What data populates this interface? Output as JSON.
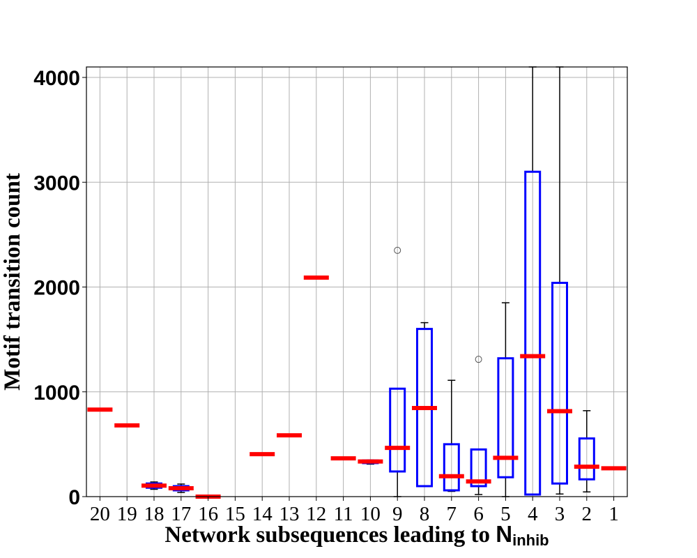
{
  "chart_data": {
    "type": "box",
    "title": "",
    "xlabel": "Network subsequences leading to ",
    "xlabel_symbol": "N",
    "xlabel_subscript": "inhib",
    "ylabel": "Motif transition count",
    "ylim": [
      0,
      4100
    ],
    "y_ticks": [
      "0",
      "1000",
      "2000",
      "3000",
      "4000"
    ],
    "y_tick_values": [
      0,
      1000,
      2000,
      3000,
      4000
    ],
    "grid": true,
    "box_color": "#0000ff",
    "median_color": "#ff0000",
    "whisker_color": "#000000",
    "categories": [
      "20",
      "19",
      "18",
      "17",
      "16",
      "15",
      "14",
      "13",
      "12",
      "11",
      "10",
      "9",
      "8",
      "7",
      "6",
      "5",
      "4",
      "3",
      "2",
      "1"
    ],
    "boxes": [
      {
        "label": "20",
        "min": 830,
        "q1": 830,
        "median": 830,
        "q3": 830,
        "max": 830,
        "outliers": []
      },
      {
        "label": "19",
        "min": 680,
        "q1": 680,
        "median": 680,
        "q3": 680,
        "max": 680,
        "outliers": []
      },
      {
        "label": "18",
        "min": 70,
        "q1": 85,
        "median": 105,
        "q3": 125,
        "max": 140,
        "outliers": []
      },
      {
        "label": "17",
        "min": 40,
        "q1": 60,
        "median": 80,
        "q3": 100,
        "max": 120,
        "outliers": []
      },
      {
        "label": "16",
        "min": 0,
        "q1": 0,
        "median": 0,
        "q3": 0,
        "max": 0,
        "outliers": []
      },
      {
        "label": "15",
        "empty": true
      },
      {
        "label": "14",
        "min": 405,
        "q1": 405,
        "median": 405,
        "q3": 405,
        "max": 405,
        "outliers": []
      },
      {
        "label": "13",
        "min": 585,
        "q1": 585,
        "median": 585,
        "q3": 585,
        "max": 585,
        "outliers": []
      },
      {
        "label": "12",
        "min": 2090,
        "q1": 2090,
        "median": 2090,
        "q3": 2090,
        "max": 2090,
        "outliers": []
      },
      {
        "label": "11",
        "min": 365,
        "q1": 365,
        "median": 365,
        "q3": 365,
        "max": 365,
        "outliers": []
      },
      {
        "label": "10",
        "min": 310,
        "q1": 320,
        "median": 335,
        "q3": 345,
        "max": 350,
        "outliers": []
      },
      {
        "label": "9",
        "min": 0,
        "q1": 240,
        "median": 465,
        "q3": 1030,
        "max": 1030,
        "outliers": [
          2350
        ]
      },
      {
        "label": "8",
        "min": 100,
        "q1": 100,
        "median": 845,
        "q3": 1600,
        "max": 1660,
        "outliers": []
      },
      {
        "label": "7",
        "min": 50,
        "q1": 60,
        "median": 195,
        "q3": 500,
        "max": 1110,
        "outliers": []
      },
      {
        "label": "6",
        "min": 20,
        "q1": 100,
        "median": 145,
        "q3": 450,
        "max": 450,
        "outliers": [
          1310
        ]
      },
      {
        "label": "5",
        "min": 0,
        "q1": 185,
        "median": 370,
        "q3": 1320,
        "max": 1850,
        "outliers": []
      },
      {
        "label": "4",
        "min": 20,
        "q1": 20,
        "median": 1340,
        "q3": 3100,
        "max": 4100,
        "outliers": []
      },
      {
        "label": "3",
        "min": 25,
        "q1": 125,
        "median": 815,
        "q3": 2040,
        "max": 4100,
        "outliers": []
      },
      {
        "label": "2",
        "min": 45,
        "q1": 165,
        "median": 285,
        "q3": 555,
        "max": 820,
        "outliers": []
      },
      {
        "label": "1",
        "min": 270,
        "q1": 270,
        "median": 270,
        "q3": 270,
        "max": 270,
        "outliers": []
      }
    ]
  }
}
